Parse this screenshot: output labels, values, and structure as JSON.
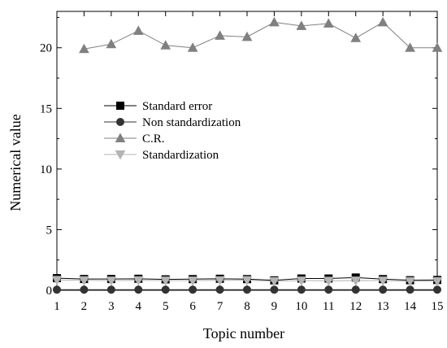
{
  "chart_data": {
    "type": "line",
    "xlabel": "Topic number",
    "ylabel": "Numerical value",
    "xlim": [
      1,
      15
    ],
    "ylim": [
      0,
      23
    ],
    "xticks": [
      1,
      2,
      3,
      4,
      5,
      6,
      7,
      8,
      9,
      10,
      11,
      12,
      13,
      14,
      15
    ],
    "yticks": [
      0,
      5,
      10,
      15,
      20
    ],
    "grid": false,
    "legend_position": "left-center",
    "series": [
      {
        "name": "Standard error",
        "marker": "square",
        "color": "#000000",
        "x": [
          1,
          2,
          3,
          4,
          5,
          6,
          7,
          8,
          9,
          10,
          11,
          12,
          13,
          14,
          15
        ],
        "values": [
          1.0,
          0.93,
          0.93,
          0.95,
          0.9,
          0.92,
          0.95,
          0.92,
          0.82,
          0.97,
          0.97,
          1.05,
          0.92,
          0.83,
          0.85
        ]
      },
      {
        "name": "Non standardization",
        "marker": "circle",
        "color": "#333333",
        "x": [
          1,
          2,
          3,
          4,
          5,
          6,
          7,
          8,
          9,
          10,
          11,
          12,
          13,
          14,
          15
        ],
        "values": [
          0.05,
          0.05,
          0.05,
          0.05,
          0.05,
          0.05,
          0.05,
          0.05,
          0.05,
          0.05,
          0.05,
          0.05,
          0.05,
          0.05,
          0.05
        ]
      },
      {
        "name": "C.R.",
        "marker": "triangle-up",
        "color": "#808080",
        "x": [
          2,
          3,
          4,
          5,
          6,
          7,
          8,
          9,
          10,
          11,
          12,
          13,
          14,
          15
        ],
        "values": [
          19.9,
          20.3,
          21.4,
          20.2,
          20.0,
          21.0,
          20.9,
          22.1,
          21.8,
          22.0,
          20.8,
          22.1,
          20.0,
          20.0
        ]
      },
      {
        "name": "Standardization",
        "marker": "triangle-down",
        "color": "#b4b4b4",
        "x": [
          1,
          2,
          3,
          4,
          5,
          6,
          7,
          8,
          9,
          10,
          11,
          12,
          13,
          14,
          15
        ],
        "values": [
          0.85,
          0.82,
          0.8,
          0.82,
          0.8,
          0.8,
          0.82,
          0.83,
          0.75,
          0.8,
          0.78,
          0.8,
          0.8,
          0.75,
          0.75
        ]
      }
    ]
  }
}
